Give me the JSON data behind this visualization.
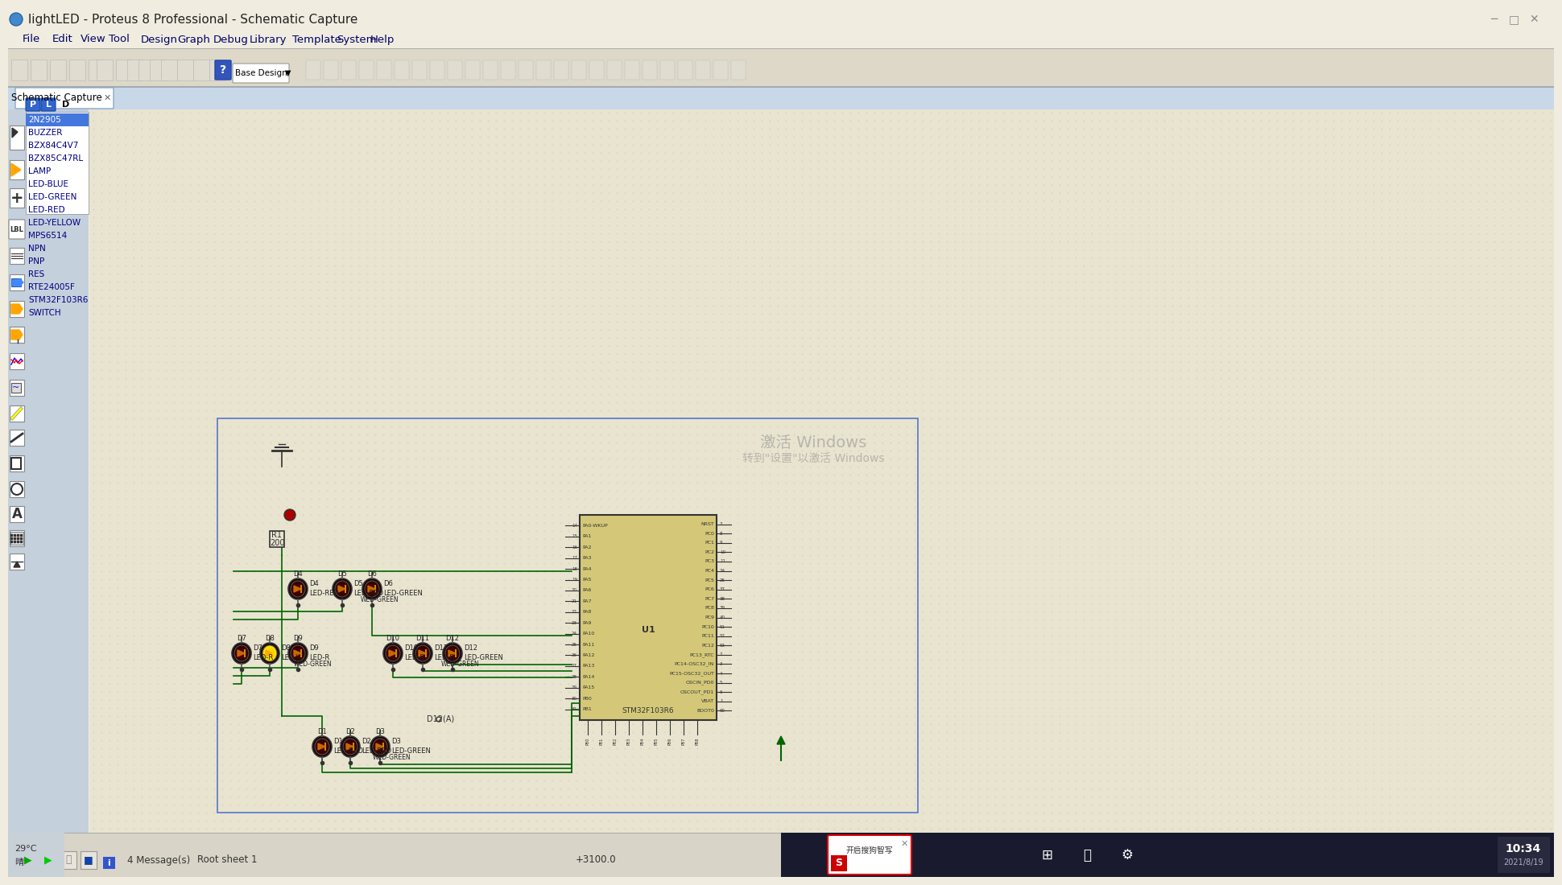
{
  "title_bar": "lightLED - Proteus 8 Professional - Schematic Capture",
  "menu_items": [
    "File",
    "Edit",
    "View",
    "Tool",
    "Design",
    "Graph",
    "Debug",
    "Library",
    "Template",
    "System",
    "Help"
  ],
  "tab_label": "Schematic Capture",
  "device_list": [
    "2N2905",
    "BUZZER",
    "BZX84C4V7",
    "BZX85C47RL",
    "LAMP",
    "LED-BLUE",
    "LED-GREEN",
    "LED-RED",
    "LED-YELLOW",
    "MPS6514",
    "NPN",
    "PNP",
    "RES",
    "RTE24005F",
    "STM32F103R6",
    "SWITCH"
  ],
  "bg_color": "#e8e4d0",
  "grid_color": "#d0ccb8",
  "wire_color": "#006400",
  "title_bg": "#f0ede0",
  "toolbar_bg": "#d8d4c0",
  "sidebar_bg": "#c8d4e0",
  "panel_bg": "#dce8f0",
  "selected_device": "2N2905",
  "status_bar_text": "+3100.0",
  "bottom_left_text": "29°C\n晴",
  "sheet_label": "Root sheet 1",
  "messages": "4 Message(s)",
  "time_text": "10:34",
  "date_text": "2021/8/19"
}
